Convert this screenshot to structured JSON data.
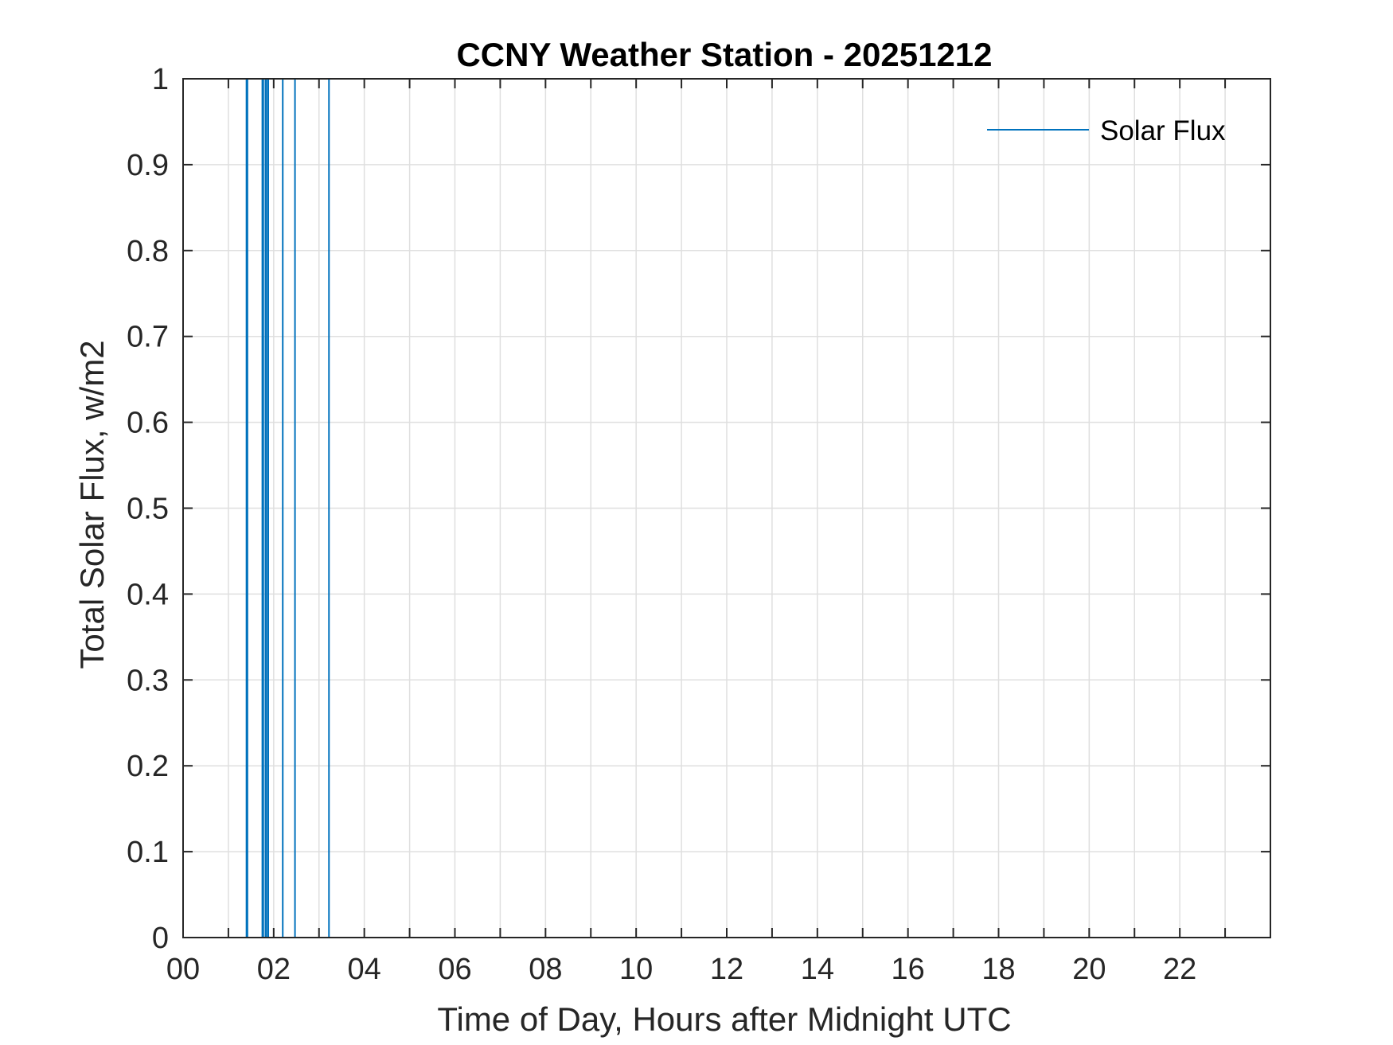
{
  "colors": {
    "series": "#0072bd",
    "axis": "#262626",
    "grid": "#dfdfdf",
    "background": "#ffffff"
  },
  "chart_data": {
    "type": "line",
    "title": "CCNY Weather Station - 20251212",
    "xlabel": "Time of Day, Hours after Midnight UTC",
    "ylabel": "Total Solar Flux, w/m2",
    "xlim": [
      0,
      24
    ],
    "ylim": [
      0,
      1
    ],
    "xticks": [
      0,
      2,
      4,
      6,
      8,
      10,
      12,
      14,
      16,
      18,
      20,
      22
    ],
    "xtick_labels": [
      "00",
      "02",
      "04",
      "06",
      "08",
      "10",
      "12",
      "14",
      "16",
      "18",
      "20",
      "22"
    ],
    "yticks": [
      0,
      0.1,
      0.2,
      0.3,
      0.4,
      0.5,
      0.6,
      0.7,
      0.8,
      0.9,
      1
    ],
    "ytick_labels": [
      "0",
      "0.1",
      "0.2",
      "0.3",
      "0.4",
      "0.5",
      "0.6",
      "0.7",
      "0.8",
      "0.9",
      "1"
    ],
    "grid": true,
    "minor_x_grid_hours": 1,
    "legend_position": "top-right",
    "series": [
      {
        "name": "Solar Flux",
        "spike_hours": [
          1.4,
          1.42,
          1.75,
          1.77,
          1.82,
          1.84,
          1.88,
          2.2,
          2.47,
          3.22
        ]
      }
    ]
  }
}
